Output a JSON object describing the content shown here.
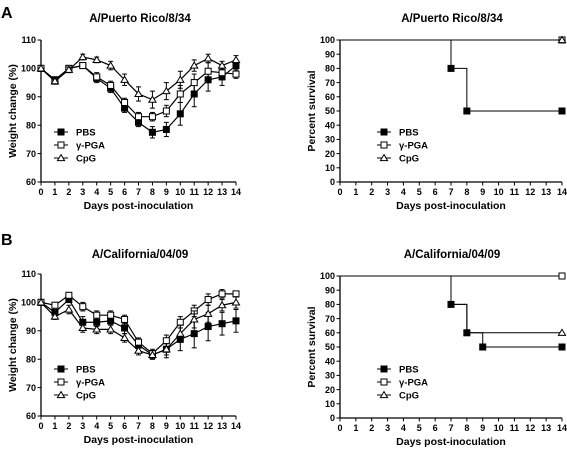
{
  "figure": {
    "panel_labels": [
      "A",
      "B"
    ]
  },
  "chart_data": [
    {
      "id": "A1",
      "type": "line",
      "title": "A/Puerto Rico/8/34",
      "xlabel": "Days post-inoculation",
      "ylabel": "Weight change (%)",
      "xlim": [
        0,
        14
      ],
      "ylim": [
        60,
        110
      ],
      "x_ticks": [
        0,
        1,
        2,
        3,
        4,
        5,
        6,
        7,
        8,
        9,
        10,
        11,
        12,
        13,
        14
      ],
      "y_ticks": [
        60,
        70,
        80,
        90,
        100,
        110
      ],
      "grid": false,
      "legend": "bottom-left",
      "series": [
        {
          "name": "PBS",
          "marker": "square-filled",
          "x": [
            0,
            1,
            2,
            3,
            4,
            5,
            6,
            7,
            8,
            9,
            10,
            11,
            12,
            13,
            14
          ],
          "y": [
            100,
            96,
            100,
            101,
            96.5,
            93,
            86,
            81,
            77.5,
            78.5,
            84,
            91,
            96,
            97,
            101
          ],
          "err": [
            0,
            1,
            1,
            1,
            1.5,
            1.5,
            1.5,
            1.5,
            2,
            2.5,
            4,
            4.5,
            4,
            3,
            2
          ]
        },
        {
          "name": "γ-PGA",
          "marker": "square-open",
          "x": [
            0,
            1,
            2,
            3,
            4,
            5,
            6,
            7,
            8,
            9,
            10,
            11,
            12,
            13,
            14
          ],
          "y": [
            100,
            95.5,
            100,
            101,
            97,
            94,
            88,
            83,
            83,
            85,
            91,
            95,
            99,
            98.5,
            98
          ],
          "err": [
            0,
            1,
            1,
            1,
            1.5,
            1.5,
            1.5,
            1.5,
            1.5,
            2,
            3,
            3,
            3,
            2,
            1.5
          ]
        },
        {
          "name": "CpG",
          "marker": "triangle-open",
          "x": [
            0,
            1,
            2,
            3,
            4,
            5,
            6,
            7,
            8,
            9,
            10,
            11,
            12,
            13,
            14
          ],
          "y": [
            100,
            95.5,
            99.5,
            104,
            103,
            101,
            96,
            91,
            89,
            92,
            96,
            101,
            103.5,
            101,
            103
          ],
          "err": [
            0,
            1,
            1,
            1,
            1,
            1.5,
            2,
            2.5,
            3,
            3,
            3,
            2,
            1.5,
            1.5,
            1.5
          ]
        }
      ]
    },
    {
      "id": "A2",
      "type": "line",
      "step": true,
      "title": "A/Puerto Rico/8/34",
      "xlabel": "Days post-inoculation",
      "ylabel": "Percent survival",
      "xlim": [
        0,
        14
      ],
      "ylim": [
        0,
        100
      ],
      "x_ticks": [
        0,
        1,
        2,
        3,
        4,
        5,
        6,
        7,
        8,
        9,
        10,
        11,
        12,
        13,
        14
      ],
      "y_ticks": [
        0,
        10,
        20,
        30,
        40,
        50,
        60,
        70,
        80,
        90,
        100
      ],
      "grid": false,
      "legend": "bottom-center",
      "series": [
        {
          "name": "PBS",
          "marker": "square-filled",
          "x": [
            0,
            7,
            8,
            14
          ],
          "y": [
            100,
            80,
            50,
            50
          ],
          "marked": [
            false,
            true,
            true,
            true
          ]
        },
        {
          "name": "γ-PGA",
          "marker": "square-open",
          "x": [
            0,
            14
          ],
          "y": [
            100,
            100
          ],
          "marked": [
            false,
            true
          ]
        },
        {
          "name": "CpG",
          "marker": "triangle-open",
          "x": [
            0,
            14
          ],
          "y": [
            100,
            100
          ],
          "marked": [
            false,
            true
          ]
        }
      ]
    },
    {
      "id": "B1",
      "type": "line",
      "title": "",
      "xlabel": "Days post-inoculation",
      "ylabel": "Weight change (%)",
      "xlim": [
        0,
        14
      ],
      "ylim": [
        60,
        110
      ],
      "x_ticks": [
        0,
        1,
        2,
        3,
        4,
        5,
        6,
        7,
        8,
        9,
        10,
        11,
        12,
        13,
        14
      ],
      "y_ticks": [
        60,
        70,
        80,
        90,
        100,
        110
      ],
      "grid": false,
      "legend": "bottom-left",
      "series": [
        {
          "name": "PBS",
          "marker": "square-filled",
          "x": [
            0,
            1,
            2,
            3,
            4,
            5,
            6,
            7,
            8,
            9,
            10,
            11,
            12,
            13,
            14
          ],
          "y": [
            100,
            96.5,
            101,
            93,
            93,
            93.5,
            91,
            85,
            81.5,
            83.5,
            87,
            89,
            91.5,
            92.5,
            93.5
          ],
          "err": [
            0,
            1,
            1,
            2,
            1.5,
            1.5,
            2,
            2,
            1.5,
            3,
            4,
            5,
            5,
            4,
            4
          ]
        },
        {
          "name": "γ-PGA",
          "marker": "square-open",
          "x": [
            0,
            1,
            2,
            3,
            4,
            5,
            6,
            7,
            8,
            9,
            10,
            11,
            12,
            13,
            14
          ],
          "y": [
            100,
            99,
            102.5,
            98.5,
            95.5,
            95.5,
            94,
            86,
            82,
            86.5,
            93,
            97,
            101,
            103,
            103
          ],
          "err": [
            0,
            1,
            1,
            1.5,
            1.5,
            1.5,
            1.5,
            1.5,
            1.5,
            2,
            2,
            2,
            2,
            1.5,
            1
          ]
        },
        {
          "name": "CpG",
          "marker": "triangle-open",
          "x": [
            0,
            1,
            2,
            3,
            4,
            5,
            6,
            7,
            8,
            9,
            10,
            11,
            12,
            13,
            14
          ],
          "y": [
            100,
            95,
            97.5,
            91,
            90.5,
            90.5,
            87.5,
            83,
            81.5,
            83.5,
            89,
            94,
            96,
            99,
            100
          ],
          "err": [
            0,
            1,
            1.5,
            1.5,
            1.5,
            1.5,
            1.5,
            1.5,
            1.5,
            2,
            3,
            3,
            3,
            2,
            2
          ]
        }
      ]
    },
    {
      "id": "B2",
      "type": "line",
      "step": true,
      "title": "A/California/04/09",
      "xlabel": "Days post-inoculation",
      "ylabel": "Percent survival",
      "xlim": [
        0,
        14
      ],
      "ylim": [
        0,
        100
      ],
      "x_ticks": [
        0,
        1,
        2,
        3,
        4,
        5,
        6,
        7,
        8,
        9,
        10,
        11,
        12,
        13,
        14
      ],
      "y_ticks": [
        0,
        10,
        20,
        30,
        40,
        50,
        60,
        70,
        80,
        90,
        100
      ],
      "grid": false,
      "legend": "bottom-center",
      "series": [
        {
          "name": "PBS",
          "marker": "square-filled",
          "x": [
            0,
            7,
            8,
            9,
            14
          ],
          "y": [
            100,
            80,
            60,
            50,
            50
          ],
          "marked": [
            false,
            true,
            true,
            true,
            true
          ]
        },
        {
          "name": "γ-PGA",
          "marker": "square-open",
          "x": [
            0,
            14
          ],
          "y": [
            100,
            100
          ],
          "marked": [
            false,
            true
          ]
        },
        {
          "name": "CpG",
          "marker": "triangle-open",
          "x": [
            0,
            7,
            8,
            14
          ],
          "y": [
            100,
            80,
            60,
            60
          ],
          "marked": [
            false,
            false,
            false,
            true
          ]
        }
      ]
    }
  ],
  "extra_titles": {
    "B1_title": "A/California/04/09"
  }
}
